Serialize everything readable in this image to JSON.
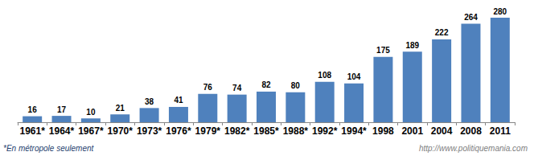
{
  "chart_data": {
    "type": "bar",
    "categories": [
      "1961*",
      "1964*",
      "1967*",
      "1970*",
      "1973*",
      "1976*",
      "1979*",
      "1982*",
      "1985*",
      "1988*",
      "1992*",
      "1994*",
      "1998",
      "2001",
      "2004",
      "2008",
      "2011"
    ],
    "values": [
      16,
      17,
      10,
      21,
      38,
      41,
      76,
      74,
      82,
      80,
      108,
      104,
      175,
      189,
      222,
      264,
      280
    ],
    "color": "#4f81bd",
    "ylim": [
      0,
      280
    ],
    "grid": false,
    "data_labels": true,
    "tick_labels": "x",
    "annotations": [
      "*En métropole seulement",
      "http://www.politiquemania.com"
    ]
  }
}
